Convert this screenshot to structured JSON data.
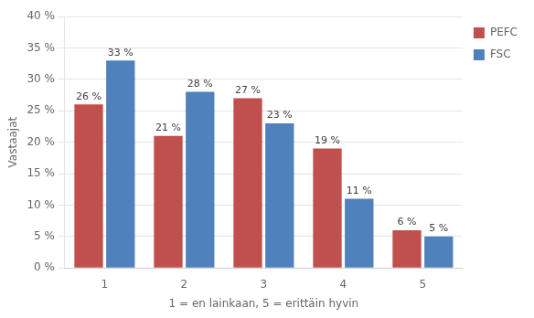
{
  "chart_data": {
    "type": "bar",
    "xlabel": "1 = en lainkaan, 5 = erittäin hyvin",
    "ylabel": "Vastaajat",
    "categories": [
      "1",
      "2",
      "3",
      "4",
      "5"
    ],
    "series": [
      {
        "name": "PEFC",
        "color": "#C0504D",
        "values": [
          26,
          21,
          27,
          19,
          6
        ],
        "value_labels": [
          "26 %",
          "21 %",
          "27 %",
          "19 %",
          "6 %"
        ]
      },
      {
        "name": "FSC",
        "color": "#4F81BD",
        "values": [
          33,
          28,
          23,
          11,
          5
        ],
        "value_labels": [
          "33 %",
          "28 %",
          "23 %",
          "11 %",
          "5 %"
        ]
      }
    ],
    "ylim": [
      0,
      40
    ],
    "yticks": [
      {
        "value": 0,
        "label": "0 %"
      },
      {
        "value": 5,
        "label": "5 %"
      },
      {
        "value": 10,
        "label": "10 %"
      },
      {
        "value": 15,
        "label": "15 %"
      },
      {
        "value": 20,
        "label": "20 %"
      },
      {
        "value": 25,
        "label": "25 %"
      },
      {
        "value": 30,
        "label": "30 %"
      },
      {
        "value": 35,
        "label": "35 %"
      },
      {
        "value": 40,
        "label": "40 %"
      }
    ],
    "grid": "y",
    "legend": "right",
    "data_labels": true
  }
}
